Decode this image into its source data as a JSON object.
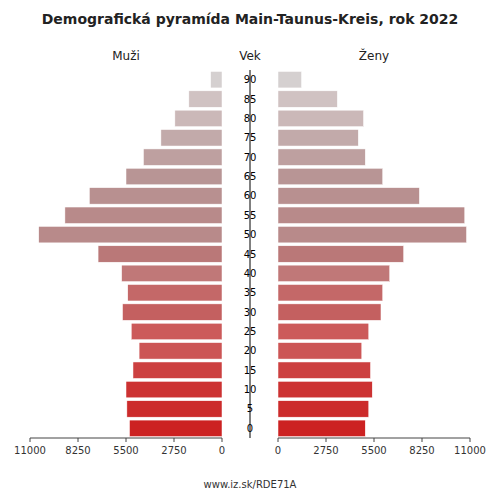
{
  "chart_data": {
    "type": "pyramid",
    "orientation": "horizontal",
    "title": "Demografická pyramída Main-Taunus-Kreis, rok 2022",
    "ylabel": "Vek",
    "annotations": [
      "www.iz.sk/RDE71A"
    ],
    "categories": [
      "0",
      "5",
      "10",
      "15",
      "20",
      "25",
      "30",
      "35",
      "40",
      "45",
      "50",
      "55",
      "60",
      "65",
      "70",
      "75",
      "80",
      "85",
      "90"
    ],
    "series": [
      {
        "name": "Muži",
        "values": [
          5300,
          5450,
          5500,
          5100,
          4750,
          5200,
          5700,
          5400,
          5750,
          7100,
          10500,
          9000,
          7600,
          5500,
          4500,
          3500,
          2700,
          1900,
          650
        ],
        "colors": [
          "#cc2222",
          "#cc2b2b",
          "#cc3232",
          "#cc4040",
          "#cc5555",
          "#cc5a5a",
          "#c46060",
          "#c46868",
          "#c07878",
          "#ba7878",
          "#b88a8a",
          "#b88a8a",
          "#b89090",
          "#b89595",
          "#bea0a0",
          "#c2aaaa",
          "#cbb8b8",
          "#d0c2c2",
          "#d5d0d0"
        ]
      },
      {
        "name": "Ženy",
        "values": [
          5000,
          5200,
          5400,
          5300,
          4800,
          5200,
          5900,
          6000,
          6400,
          7200,
          10800,
          10700,
          8100,
          6000,
          5000,
          4600,
          4900,
          3400,
          1350
        ],
        "colors": [
          "#cc2222",
          "#cc2b2b",
          "#cc3232",
          "#cc4040",
          "#cc5555",
          "#cc5a5a",
          "#c46060",
          "#c46868",
          "#c07878",
          "#ba7878",
          "#b88a8a",
          "#b88a8a",
          "#b89090",
          "#b89595",
          "#bea0a0",
          "#c2aaaa",
          "#cbb8b8",
          "#d0c2c2",
          "#d5d0d0"
        ]
      }
    ],
    "xlim": [
      0,
      11000
    ],
    "xticks": [
      0,
      2750,
      5500,
      8250,
      11000
    ],
    "grid": false
  }
}
